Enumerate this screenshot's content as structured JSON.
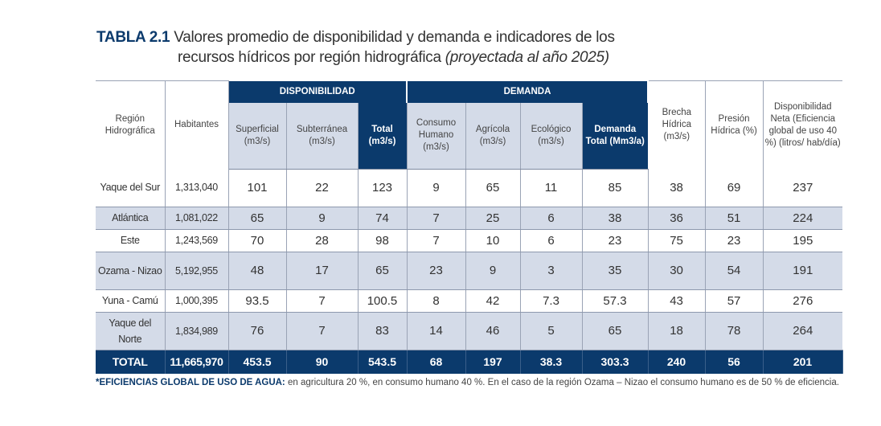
{
  "title": {
    "number": "TABLA 2.1",
    "line1": "Valores promedio de disponibilidad y demanda e indicadores de los",
    "line2": "recursos hídricos por región hidrográfica",
    "line2_italic": "(proyectada al año 2025)"
  },
  "header": {
    "region": "Región Hidrográfica",
    "habitantes": "Habitantes",
    "disponibilidad": "DISPONIBILIDAD",
    "demanda": "DEMANDA",
    "superficial": "Superficial (m3/s)",
    "subterranea": "Subterránea (m3/s)",
    "total_disp": "Total (m3/s)",
    "consumo": "Consumo Humano (m3/s)",
    "agricola": "Agrícola (m3/s)",
    "ecologico": "Ecológico (m3/s)",
    "demanda_total": "Demanda Total (Mm3/a)",
    "brecha": "Brecha Hídrica (m3/s)",
    "presion": "Presión Hídrica (%)",
    "disp_neta": "Disponibilidad Neta (Eficiencia global de uso 40 %) (litros/ hab/día)"
  },
  "colors": {
    "navy": "#0b3a6c",
    "light_row": "#d4dbe8"
  },
  "rows": [
    [
      "Yaque del Sur",
      "1,313,040",
      "101",
      "22",
      "123",
      "9",
      "65",
      "11",
      "85",
      "38",
      "69",
      "237"
    ],
    [
      "Atlántica",
      "1,081,022",
      "65",
      "9",
      "74",
      "7",
      "25",
      "6",
      "38",
      "36",
      "51",
      "224"
    ],
    [
      "Este",
      "1,243,569",
      "70",
      "28",
      "98",
      "7",
      "10",
      "6",
      "23",
      "75",
      "23",
      "195"
    ],
    [
      "Ozama - Nizao",
      "5,192,955",
      "48",
      "17",
      "65",
      "23",
      "9",
      "3",
      "35",
      "30",
      "54",
      "191"
    ],
    [
      "Yuna - Camú",
      "1,000,395",
      "93.5",
      "7",
      "100.5",
      "8",
      "42",
      "7.3",
      "57.3",
      "43",
      "57",
      "276"
    ],
    [
      "Yaque del Norte",
      "1,834,989",
      "76",
      "7",
      "83",
      "14",
      "46",
      "5",
      "65",
      "18",
      "78",
      "264"
    ]
  ],
  "total": [
    "TOTAL",
    "11,665,970",
    "453.5",
    "90",
    "543.5",
    "68",
    "197",
    "38.3",
    "303.3",
    "240",
    "56",
    "201"
  ],
  "note": {
    "bold": "*EFICIENCIAS GLOBAL DE USO DE AGUA:",
    "text": " en agricultura 20 %, en consumo humano 40 %. En el caso de la región Ozama – Nizao el consumo humano es de 50 % de eficiencia."
  }
}
